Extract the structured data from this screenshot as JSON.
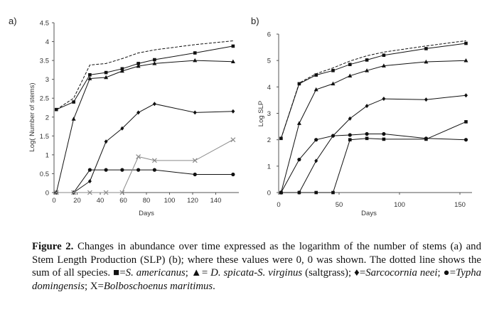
{
  "chart_data": [
    {
      "panel": "a)",
      "type": "line",
      "xlabel": "Days",
      "ylabel": "Log( Number of stems)",
      "xlim": [
        0,
        160
      ],
      "ylim": [
        0,
        4.5
      ],
      "x_ticks": [
        0,
        20,
        40,
        60,
        80,
        100,
        120,
        140
      ],
      "y_ticks": [
        0,
        0.5,
        1,
        1.5,
        2,
        2.5,
        3,
        3.5,
        4,
        4.5
      ],
      "y_tick_labels": [
        "0",
        "0.5",
        "1",
        "1.5",
        "2",
        "2.5",
        "3",
        "3.5",
        "4",
        "4.5"
      ],
      "series": [
        {
          "marker": "none",
          "dashed": true,
          "gray": false,
          "points": [
            [
              2,
              2.2
            ],
            [
              17,
              2.5
            ],
            [
              31,
              3.38
            ],
            [
              45,
              3.42
            ],
            [
              59,
              3.55
            ],
            [
              73,
              3.7
            ],
            [
              87,
              3.78
            ],
            [
              122,
              3.92
            ],
            [
              155,
              4.02
            ]
          ]
        },
        {
          "marker": "square",
          "dashed": false,
          "gray": false,
          "points": [
            [
              2,
              2.2
            ],
            [
              17,
              2.4
            ],
            [
              31,
              3.12
            ],
            [
              45,
              3.18
            ],
            [
              59,
              3.28
            ],
            [
              73,
              3.42
            ],
            [
              87,
              3.52
            ],
            [
              122,
              3.7
            ],
            [
              155,
              3.88
            ]
          ]
        },
        {
          "marker": "triangle",
          "dashed": false,
          "gray": false,
          "points": [
            [
              2,
              0
            ],
            [
              17,
              1.95
            ],
            [
              31,
              3.02
            ],
            [
              45,
              3.05
            ],
            [
              59,
              3.22
            ],
            [
              73,
              3.35
            ],
            [
              87,
              3.42
            ],
            [
              122,
              3.5
            ],
            [
              155,
              3.47
            ]
          ]
        },
        {
          "marker": "diamond",
          "dashed": false,
          "gray": false,
          "points": [
            [
              2,
              0
            ],
            [
              17,
              0
            ],
            [
              31,
              0.3
            ],
            [
              45,
              1.35
            ],
            [
              59,
              1.7
            ],
            [
              73,
              2.12
            ],
            [
              87,
              2.35
            ],
            [
              122,
              2.12
            ],
            [
              155,
              2.15
            ]
          ]
        },
        {
          "marker": "circle",
          "dashed": false,
          "gray": false,
          "points": [
            [
              2,
              0
            ],
            [
              17,
              0
            ],
            [
              31,
              0.6
            ],
            [
              45,
              0.6
            ],
            [
              59,
              0.6
            ],
            [
              73,
              0.6
            ],
            [
              87,
              0.6
            ],
            [
              122,
              0.48
            ],
            [
              155,
              0.48
            ]
          ]
        },
        {
          "marker": "x",
          "dashed": false,
          "gray": true,
          "points": [
            [
              2,
              0
            ],
            [
              17,
              0
            ],
            [
              31,
              0
            ],
            [
              45,
              0
            ],
            [
              59,
              0
            ],
            [
              73,
              0.95
            ],
            [
              87,
              0.85
            ],
            [
              122,
              0.85
            ],
            [
              155,
              1.4
            ]
          ]
        }
      ]
    },
    {
      "panel": "b)",
      "type": "line",
      "xlabel": "Days",
      "ylabel": "Log SLP",
      "xlim": [
        0,
        160
      ],
      "ylim": [
        0,
        6
      ],
      "x_ticks": [
        0,
        50,
        100,
        150
      ],
      "y_ticks": [
        0,
        1,
        2,
        3,
        4,
        5,
        6
      ],
      "y_tick_labels": [
        "0",
        "1",
        "2",
        "3",
        "4",
        "5",
        "6"
      ],
      "series": [
        {
          "marker": "none",
          "dashed": true,
          "gray": false,
          "points": [
            [
              2,
              2.05
            ],
            [
              17,
              4.15
            ],
            [
              31,
              4.5
            ],
            [
              45,
              4.72
            ],
            [
              59,
              4.98
            ],
            [
              73,
              5.18
            ],
            [
              87,
              5.32
            ],
            [
              122,
              5.55
            ],
            [
              155,
              5.75
            ]
          ]
        },
        {
          "marker": "square",
          "dashed": false,
          "gray": false,
          "points": [
            [
              2,
              2.05
            ],
            [
              17,
              4.12
            ],
            [
              31,
              4.45
            ],
            [
              45,
              4.62
            ],
            [
              59,
              4.85
            ],
            [
              73,
              5.02
            ],
            [
              87,
              5.2
            ],
            [
              122,
              5.45
            ],
            [
              155,
              5.65
            ]
          ]
        },
        {
          "marker": "triangle",
          "dashed": false,
          "gray": false,
          "points": [
            [
              2,
              0
            ],
            [
              17,
              2.62
            ],
            [
              31,
              3.9
            ],
            [
              45,
              4.12
            ],
            [
              59,
              4.42
            ],
            [
              73,
              4.62
            ],
            [
              87,
              4.8
            ],
            [
              122,
              4.95
            ],
            [
              155,
              5.0
            ]
          ]
        },
        {
          "marker": "diamond",
          "dashed": false,
          "gray": false,
          "points": [
            [
              2,
              0
            ],
            [
              17,
              0
            ],
            [
              31,
              1.2
            ],
            [
              45,
              2.15
            ],
            [
              59,
              2.8
            ],
            [
              73,
              3.28
            ],
            [
              87,
              3.55
            ],
            [
              122,
              3.52
            ],
            [
              155,
              3.68
            ]
          ]
        },
        {
          "marker": "circle",
          "dashed": false,
          "gray": false,
          "points": [
            [
              2,
              0
            ],
            [
              17,
              1.25
            ],
            [
              31,
              2.0
            ],
            [
              45,
              2.15
            ],
            [
              59,
              2.18
            ],
            [
              73,
              2.22
            ],
            [
              87,
              2.22
            ],
            [
              122,
              2.05
            ],
            [
              155,
              2.0
            ]
          ]
        },
        {
          "marker": "square",
          "dashed": false,
          "gray": false,
          "points": [
            [
              2,
              0
            ],
            [
              17,
              0
            ],
            [
              31,
              0
            ],
            [
              45,
              0
            ],
            [
              59,
              2.0
            ],
            [
              73,
              2.05
            ],
            [
              87,
              2.02
            ],
            [
              122,
              2.02
            ],
            [
              155,
              2.68
            ]
          ]
        }
      ]
    }
  ],
  "caption": {
    "label": "Figure 2.",
    "text_1": " Changes in abundance over time expressed as the logarithm of the number of stems (a) and Stem Length Production (SLP) (b); where these values were 0, 0 was shown. The dotted line shows the sum of all species. ",
    "sym_square": "■",
    "eq_square": "=",
    "sp_square": "S. americanus",
    "sep_1": "; ",
    "sym_triangle": "▲",
    "eq_triangle": "= ",
    "sp_triangle": "D. spicata-S. virginus",
    "after_triangle": " (saltgrass); ",
    "sym_diamond": "♦",
    "eq_diamond": "=",
    "sp_diamond": "Sarcocornia neei",
    "sep_2": "; ",
    "sym_circle": "●",
    "eq_circle": "=",
    "sp_circle": "Typha domingensis",
    "sep_3": "; ",
    "sym_x": "X",
    "eq_x": "=",
    "sp_x": "Bolboschoenus maritimus",
    "end": "."
  },
  "colors": {
    "line": "#111111",
    "x_series": "#8a8a8a"
  }
}
